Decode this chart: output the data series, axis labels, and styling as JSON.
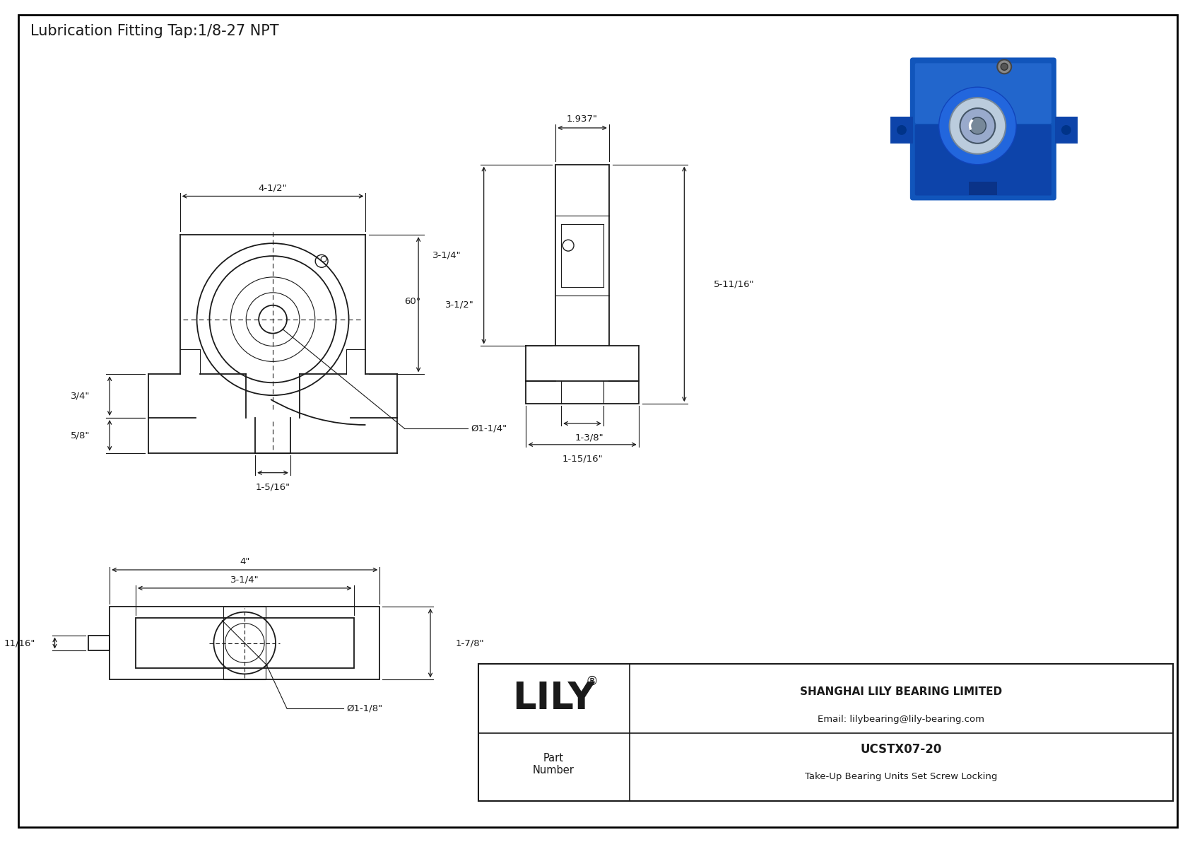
{
  "title": "Lubrication Fitting Tap:1/8-27 NPT",
  "title_fontsize": 15,
  "bg_color": "#ffffff",
  "line_color": "#1a1a1a",
  "dim_color": "#1a1a1a",
  "border_color": "#000000",
  "company_name": "SHANGHAI LILY BEARING LIMITED",
  "company_email": "Email: lilybearing@lily-bearing.com",
  "part_number_label": "Part\nNumber",
  "part_number": "UCSTX07-20",
  "part_desc": "Take-Up Bearing Units Set Screw Locking",
  "lily_text": "LILY",
  "dims_front": {
    "width_top": "4-1/2\"",
    "height_right": "3-1/2\"",
    "slot_left": "3/4\"",
    "slot_bottom": "5/8\"",
    "slot_width": "1-5/16\"",
    "bore_dia": "Ø1-1/4\"",
    "angle": "60°"
  },
  "dims_side": {
    "width_top": "1.937\"",
    "height_left": "3-1/4\"",
    "height_right": "5-11/16\"",
    "base_width1": "1-3/8\"",
    "base_width2": "1-15/16\""
  },
  "dims_bottom": {
    "width_outer": "4\"",
    "width_inner": "3-1/4\"",
    "height_right": "1-7/8\"",
    "slot_left": "11/16\"",
    "bore_dia": "Ø1-1/8\""
  }
}
